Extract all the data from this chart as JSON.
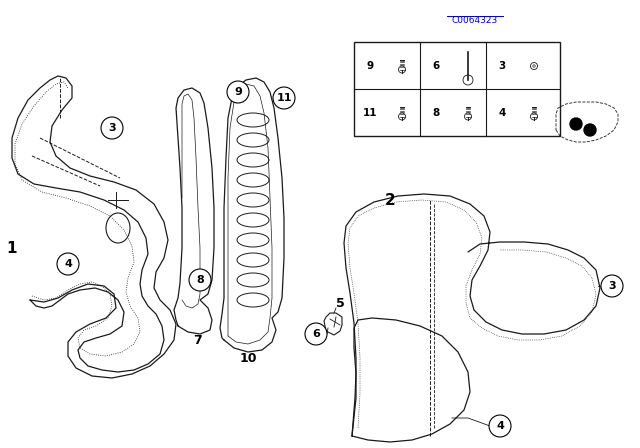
{
  "background_color": "#ffffff",
  "catalog_number": "C0064323",
  "line_color": "#1a1a1a",
  "lw": 0.9
}
